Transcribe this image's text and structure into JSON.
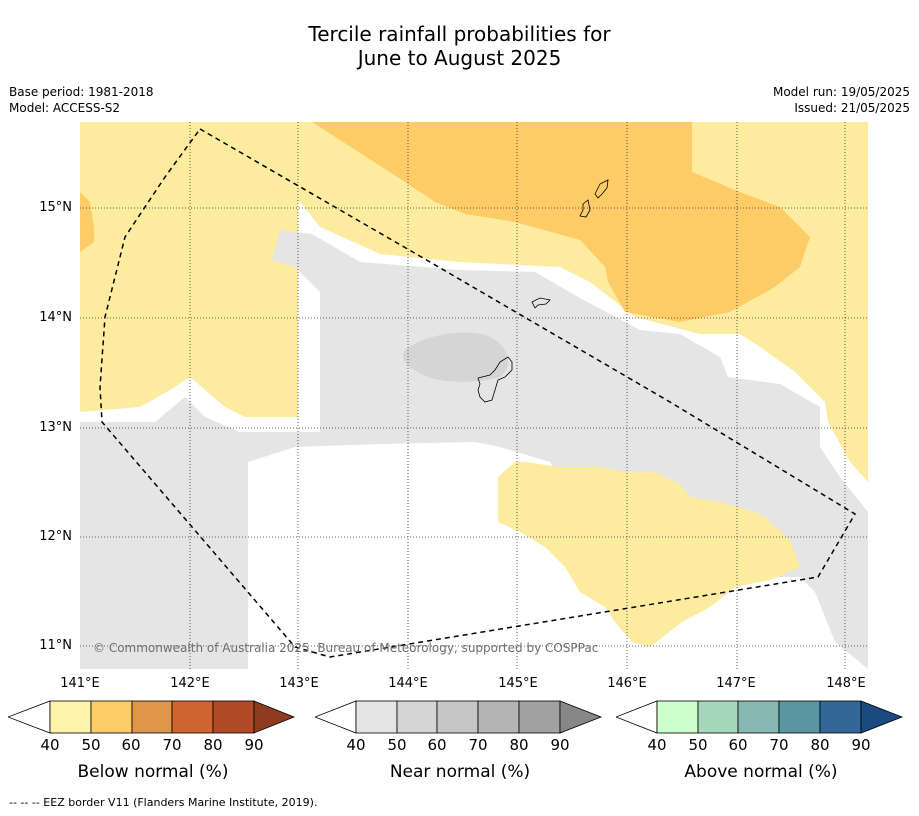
{
  "title_line1": "Tercile rainfall probabilities for",
  "title_line2": "June to August 2025",
  "meta": {
    "base_period": "Base period: 1981-2018",
    "model": "Model: ACCESS-S2",
    "model_run": "Model run: 19/05/2025",
    "issued": "Issued: 21/05/2025"
  },
  "map": {
    "lat_labels": [
      "15°N",
      "14°N",
      "13°N",
      "12°N",
      "11°N"
    ],
    "lon_labels": [
      "141°E",
      "142°E",
      "143°E",
      "144°E",
      "145°E",
      "146°E",
      "147°E",
      "148°E"
    ],
    "copyright": "© Commonwealth of Australia 2025, Bureau of Meteorology, supported by COSPPac",
    "colors": {
      "below_40": "#fdeca0",
      "below_50": "#fdcc66",
      "near_40": "#e5e5e5",
      "near_50": "#d5d5d5"
    }
  },
  "legends": [
    {
      "title": "Below normal (%)",
      "ticks": [
        "40",
        "50",
        "60",
        "70",
        "80",
        "90"
      ],
      "colors": [
        "#fff3aa",
        "#fdcc66",
        "#e0954a",
        "#cf6430",
        "#b04a27",
        "#8e3b1f"
      ]
    },
    {
      "title": "Near normal (%)",
      "ticks": [
        "40",
        "50",
        "60",
        "70",
        "80",
        "90"
      ],
      "colors": [
        "#e5e5e5",
        "#d5d5d5",
        "#c6c6c6",
        "#b4b4b4",
        "#a1a1a1",
        "#878787"
      ]
    },
    {
      "title": "Above normal (%)",
      "ticks": [
        "40",
        "50",
        "60",
        "70",
        "80",
        "90"
      ],
      "colors": [
        "#ccffcc",
        "#a6d6bc",
        "#84b8b0",
        "#5a96a2",
        "#336699",
        "#1a4a80"
      ]
    }
  ],
  "footnote": "--  --  -- EEZ border V11 (Flanders Marine Institute, 2019)."
}
